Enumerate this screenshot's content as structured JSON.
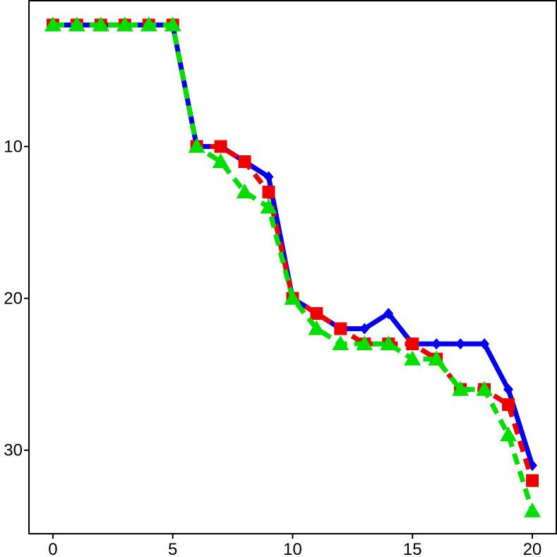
{
  "chart_data": {
    "type": "line",
    "x": [
      0,
      1,
      2,
      3,
      4,
      5,
      6,
      7,
      8,
      9,
      10,
      11,
      12,
      13,
      14,
      15,
      16,
      17,
      18,
      19,
      20
    ],
    "series": [
      {
        "values": [
          2,
          2,
          2,
          2,
          2,
          2,
          10,
          10,
          11,
          12,
          20,
          21,
          22,
          22,
          21,
          23,
          23,
          23,
          23,
          26,
          31
        ],
        "color": "#0000ee",
        "line_style": "solid",
        "marker": "diamond"
      },
      {
        "values": [
          2,
          2,
          2,
          2,
          2,
          2,
          10,
          10,
          11,
          13,
          20,
          21,
          22,
          23,
          23,
          23,
          24,
          26,
          26,
          27,
          32
        ],
        "color": "#ee0000",
        "line_style": "dashed",
        "marker": "square"
      },
      {
        "values": [
          2,
          2,
          2,
          2,
          2,
          2,
          10,
          11,
          13,
          14,
          20,
          22,
          23,
          23,
          23,
          24,
          24,
          26,
          26,
          29,
          34
        ],
        "color": "#00dd00",
        "line_style": "dashed",
        "marker": "triangle"
      }
    ],
    "x_ticks": [
      0,
      5,
      10,
      15,
      20
    ],
    "y_ticks": [
      10,
      20,
      30
    ],
    "xlim": [
      -1,
      21
    ],
    "ylim": [
      0.4,
      35.5
    ],
    "y_inverted": true,
    "grid": false,
    "legend": "none",
    "title": "",
    "xlabel": "",
    "ylabel": ""
  }
}
